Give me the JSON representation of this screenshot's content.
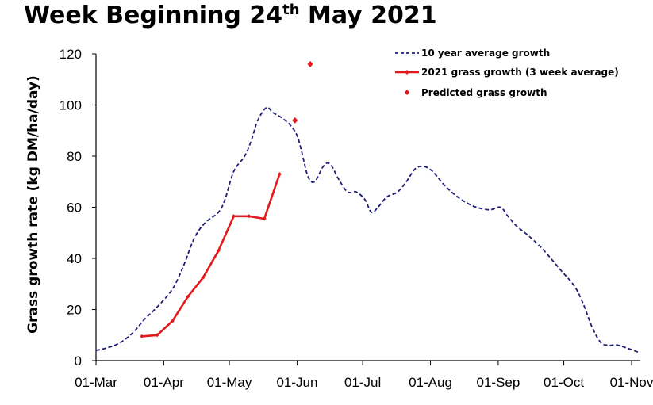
{
  "title_main": "Week Beginning 24",
  "title_sup": "th",
  "title_end": " May 2021",
  "chart_data": {
    "type": "line",
    "title": "Week Beginning 24th May 2021",
    "ylabel": "Grass growth rate (kg DM/ha/day)",
    "xlabel": "",
    "ylim": [
      0,
      120
    ],
    "yticks": [
      0,
      20,
      40,
      60,
      80,
      100,
      120
    ],
    "xlim": [
      "2021-03-01",
      "2021-11-05"
    ],
    "xticks": [
      {
        "date": "2021-03-01",
        "label": "01-Mar"
      },
      {
        "date": "2021-04-01",
        "label": "01-Apr"
      },
      {
        "date": "2021-05-01",
        "label": "01-May"
      },
      {
        "date": "2021-06-01",
        "label": "01-Jun"
      },
      {
        "date": "2021-07-01",
        "label": "01-Jul"
      },
      {
        "date": "2021-08-01",
        "label": "01-Aug"
      },
      {
        "date": "2021-09-01",
        "label": "01-Sep"
      },
      {
        "date": "2021-10-01",
        "label": "01-Oct"
      },
      {
        "date": "2021-11-01",
        "label": "01-Nov"
      }
    ],
    "grid": false,
    "legend_position": "top-right",
    "series": [
      {
        "name": "10 year average growth",
        "style": "dashed",
        "color": "#1f1f7a",
        "points": [
          [
            "2021-03-01",
            4
          ],
          [
            "2021-03-06",
            5
          ],
          [
            "2021-03-12",
            7
          ],
          [
            "2021-03-18",
            11
          ],
          [
            "2021-03-23",
            16
          ],
          [
            "2021-03-29",
            21
          ],
          [
            "2021-04-05",
            28
          ],
          [
            "2021-04-10",
            37
          ],
          [
            "2021-04-15",
            48
          ],
          [
            "2021-04-20",
            54
          ],
          [
            "2021-04-26",
            58
          ],
          [
            "2021-04-29",
            63
          ],
          [
            "2021-05-03",
            74
          ],
          [
            "2021-05-08",
            80
          ],
          [
            "2021-05-11",
            86
          ],
          [
            "2021-05-14",
            94
          ],
          [
            "2021-05-18",
            99
          ],
          [
            "2021-05-21",
            97
          ],
          [
            "2021-05-25",
            95
          ],
          [
            "2021-05-29",
            92
          ],
          [
            "2021-06-01",
            88
          ],
          [
            "2021-06-03",
            82
          ],
          [
            "2021-06-06",
            72
          ],
          [
            "2021-06-09",
            70
          ],
          [
            "2021-06-13",
            76
          ],
          [
            "2021-06-16",
            77
          ],
          [
            "2021-06-20",
            71
          ],
          [
            "2021-06-24",
            66
          ],
          [
            "2021-06-28",
            66
          ],
          [
            "2021-07-02",
            63
          ],
          [
            "2021-07-05",
            58
          ],
          [
            "2021-07-08",
            60
          ],
          [
            "2021-07-12",
            64
          ],
          [
            "2021-07-17",
            66
          ],
          [
            "2021-07-21",
            70
          ],
          [
            "2021-07-25",
            75
          ],
          [
            "2021-07-29",
            76
          ],
          [
            "2021-08-02",
            74
          ],
          [
            "2021-08-07",
            69
          ],
          [
            "2021-08-12",
            65
          ],
          [
            "2021-08-17",
            62
          ],
          [
            "2021-08-22",
            60
          ],
          [
            "2021-08-28",
            59
          ],
          [
            "2021-09-02",
            60
          ],
          [
            "2021-09-05",
            57
          ],
          [
            "2021-09-09",
            53
          ],
          [
            "2021-09-16",
            48
          ],
          [
            "2021-09-22",
            43
          ],
          [
            "2021-09-30",
            35
          ],
          [
            "2021-10-06",
            29
          ],
          [
            "2021-10-10",
            22
          ],
          [
            "2021-10-14",
            13
          ],
          [
            "2021-10-18",
            7
          ],
          [
            "2021-10-22",
            6
          ],
          [
            "2021-10-26",
            6
          ],
          [
            "2021-11-05",
            3
          ]
        ]
      },
      {
        "name": "2021 grass growth (3 week average)",
        "style": "solid",
        "color": "#e31a1c",
        "points": [
          [
            "2021-03-22",
            9.5
          ],
          [
            "2021-03-29",
            10
          ],
          [
            "2021-04-05",
            15.5
          ],
          [
            "2021-04-12",
            25
          ],
          [
            "2021-04-19",
            32.5
          ],
          [
            "2021-04-26",
            43
          ],
          [
            "2021-05-03",
            56.5
          ],
          [
            "2021-05-10",
            56.5
          ],
          [
            "2021-05-17",
            55.5
          ],
          [
            "2021-05-24",
            73
          ]
        ]
      },
      {
        "name": "Predicted grass growth",
        "style": "markers",
        "color": "#e31a1c",
        "points": [
          [
            "2021-05-31",
            94
          ],
          [
            "2021-06-07",
            116
          ]
        ]
      }
    ]
  }
}
